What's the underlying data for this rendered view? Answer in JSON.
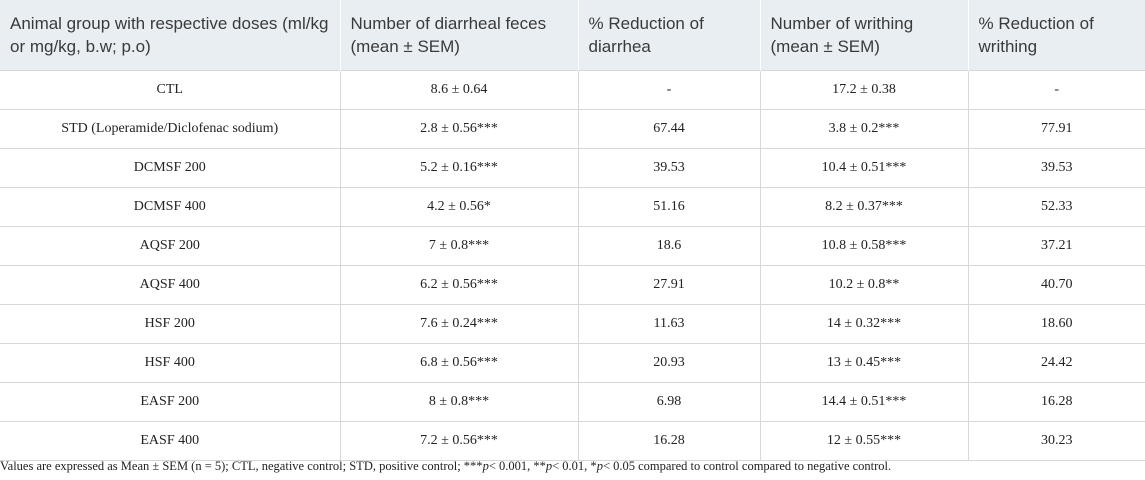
{
  "table": {
    "header": [
      "Animal group with respective doses (ml/kg or mg/kg, b.w; p.o)",
      "Number of diarrheal feces (mean ± SEM)",
      "% Reduction of diarrhea",
      "Number of writhing (mean ± SEM)",
      "% Reduction of writhing"
    ],
    "rows": [
      [
        "CTL",
        "8.6 ± 0.64",
        "-",
        "17.2 ± 0.38",
        "-"
      ],
      [
        "STD (Loperamide/Diclofenac sodium)",
        "2.8 ± 0.56***",
        "67.44",
        "3.8 ± 0.2***",
        "77.91"
      ],
      [
        "DCMSF 200",
        "5.2 ± 0.16***",
        "39.53",
        "10.4 ± 0.51***",
        "39.53"
      ],
      [
        "DCMSF 400",
        "4.2 ± 0.56*",
        "51.16",
        "8.2 ± 0.37***",
        "52.33"
      ],
      [
        "AQSF 200",
        "7 ± 0.8***",
        "18.6",
        "10.8 ± 0.58***",
        "37.21"
      ],
      [
        "AQSF 400",
        "6.2 ± 0.56***",
        "27.91",
        "10.2 ± 0.8**",
        "40.70"
      ],
      [
        "HSF 200",
        "7.6 ± 0.24***",
        "11.63",
        "14 ± 0.32***",
        "18.60"
      ],
      [
        "HSF 400",
        "6.8 ± 0.56***",
        "20.93",
        "13 ± 0.45***",
        "24.42"
      ],
      [
        "EASF 200",
        "8 ± 0.8***",
        "6.98",
        "14.4 ± 0.51***",
        "16.28"
      ],
      [
        "EASF 400",
        "7.2 ± 0.56***",
        "16.28",
        "12 ± 0.55***",
        "30.23"
      ]
    ]
  },
  "footnote": [
    "Values are expressed as Mean ± SEM (n = 5); CTL, negative control; STD, positive control; ***",
    "p",
    "< 0.001, **",
    "p",
    "< 0.01, *",
    "p",
    "< 0.05 compared to control compared to negative control."
  ]
}
